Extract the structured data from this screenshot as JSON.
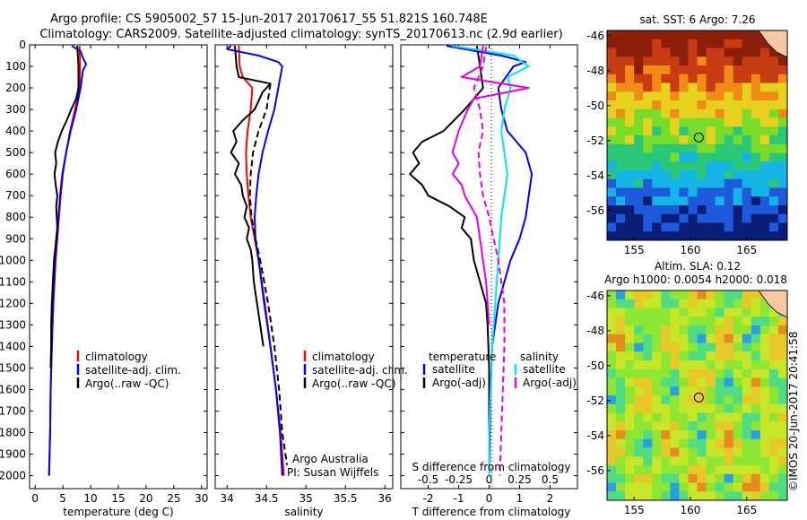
{
  "header": {
    "line1": "Argo profile: CS 5905002_57 15-Jun-2017 20170617_55 51.821S 160.748E",
    "line2": "Climatology: CARS2009. Satellite-adjusted climatology: synTS_20170613.nc (2.9d earlier)"
  },
  "colors": {
    "climatology": "#ff0000",
    "satellite": "#0000ff",
    "argo": "#000000",
    "salinity_satellite": "#00e5ff",
    "salinity_argo": "#e600e6"
  },
  "chart_data": [
    {
      "type": "line",
      "name": "temperature-profile",
      "xlabel": "temperature (deg C)",
      "ylabel": "",
      "xlim": [
        -1,
        31
      ],
      "ylim": [
        2060,
        0
      ],
      "xticks": [
        0,
        5,
        10,
        15,
        20,
        25,
        30
      ],
      "yticks": [
        0,
        100,
        200,
        300,
        400,
        500,
        600,
        700,
        800,
        900,
        1000,
        1100,
        1200,
        1300,
        1400,
        1500,
        1600,
        1700,
        1800,
        1900,
        2000
      ],
      "legend": {
        "position": "lower-center",
        "entries": [
          "climatology",
          "satellite-adj. clim.",
          "Argo(..raw -QC)"
        ]
      },
      "series": [
        {
          "name": "climatology",
          "color": "#ff0000",
          "style": "solid",
          "depth": [
            5,
            100,
            200,
            300,
            400,
            500,
            600,
            700,
            800,
            900,
            1000,
            1200,
            1400,
            1600,
            1800,
            2000
          ],
          "values": [
            8.0,
            8.1,
            8.0,
            7.2,
            6.3,
            5.6,
            5.0,
            4.6,
            4.3,
            4.0,
            3.7,
            3.3,
            3.0,
            2.8,
            2.7,
            2.5
          ]
        },
        {
          "name": "satellite-adj. clim.",
          "color": "#0000ff",
          "style": "solid",
          "depth": [
            5,
            30,
            60,
            90,
            120,
            200,
            300,
            400,
            500,
            600,
            700,
            800,
            900,
            1000,
            1200,
            1400,
            1600,
            1800,
            2000
          ],
          "values": [
            6.6,
            8.2,
            8.6,
            9.2,
            8.6,
            8.2,
            7.4,
            6.4,
            5.6,
            4.9,
            4.5,
            4.2,
            3.9,
            3.6,
            3.2,
            3.0,
            2.8,
            2.7,
            2.5
          ]
        },
        {
          "name": "Argo(..raw -QC)",
          "color": "#000000",
          "style": "solid",
          "depth": [
            5,
            100,
            200,
            250,
            300,
            350,
            400,
            450,
            500,
            550,
            600,
            650,
            700,
            750,
            800,
            850,
            900,
            950,
            1000,
            1050,
            1100,
            1150,
            1200,
            1300,
            1400,
            1500
          ],
          "values": [
            7.6,
            7.8,
            7.8,
            7.4,
            6.5,
            5.7,
            4.8,
            4.1,
            3.6,
            3.8,
            3.5,
            3.7,
            4.0,
            3.8,
            3.9,
            4.0,
            3.8,
            3.6,
            3.4,
            3.3,
            3.2,
            3.1,
            3.0,
            2.9,
            2.9,
            2.8
          ]
        }
      ]
    },
    {
      "type": "line",
      "name": "salinity-profile",
      "xlabel": "salinity",
      "xlim": [
        33.85,
        36.1
      ],
      "ylim": [
        2060,
        0
      ],
      "xticks": [
        34,
        34.5,
        35,
        35.5,
        36
      ],
      "legend": {
        "position": "lower-center",
        "entries": [
          "climatology",
          "satellite-adj. clim.",
          "Argo(..raw -QC)"
        ]
      },
      "annotations": [
        "Argo Australia",
        "PI: Susan Wijffels"
      ],
      "series": [
        {
          "name": "climatology",
          "color": "#ff0000",
          "style": "solid",
          "depth": [
            5,
            100,
            150,
            200,
            300,
            400,
            500,
            600,
            700,
            800,
            900,
            1000,
            1200,
            1400,
            1600,
            1800,
            2000
          ],
          "values": [
            34.15,
            34.16,
            34.2,
            34.32,
            34.3,
            34.26,
            34.24,
            34.25,
            34.27,
            34.3,
            34.35,
            34.4,
            34.48,
            34.55,
            34.62,
            34.68,
            34.72
          ]
        },
        {
          "name": "satellite-adj. clim.",
          "color": "#0000ff",
          "style": "solid",
          "depth": [
            5,
            20,
            50,
            80,
            100,
            200,
            300,
            400,
            500,
            600,
            700,
            800,
            900,
            1000,
            1200,
            1400,
            1600,
            1800,
            2000
          ],
          "values": [
            34.05,
            34.0,
            34.4,
            34.65,
            34.7,
            34.65,
            34.6,
            34.52,
            34.45,
            34.4,
            34.37,
            34.35,
            34.36,
            34.4,
            34.47,
            34.55,
            34.62,
            34.67,
            34.7
          ]
        },
        {
          "name": "Argo(..raw -QC)",
          "color": "#000000",
          "style": "solid",
          "depth": [
            5,
            100,
            150,
            180,
            220,
            300,
            350,
            400,
            450,
            500,
            550,
            600,
            650,
            700,
            750,
            800,
            850,
            900,
            950,
            1000,
            1050,
            1100,
            1200,
            1300,
            1400
          ],
          "values": [
            34.1,
            34.12,
            34.15,
            34.55,
            34.45,
            34.35,
            34.2,
            34.08,
            34.12,
            34.05,
            34.15,
            34.1,
            34.18,
            34.2,
            34.25,
            34.22,
            34.28,
            34.25,
            34.3,
            34.32,
            34.33,
            34.34,
            34.38,
            34.42,
            34.46
          ]
        },
        {
          "name": "Argo-dashed",
          "color": "#000000",
          "style": "dash",
          "depth": [
            180,
            300,
            400,
            500,
            600,
            700,
            800,
            900,
            1000,
            1200,
            1400,
            1600,
            1800,
            1950
          ],
          "values": [
            34.55,
            34.5,
            34.4,
            34.33,
            34.3,
            34.29,
            34.31,
            34.36,
            34.42,
            34.52,
            34.6,
            34.66,
            34.7,
            34.76
          ]
        }
      ]
    },
    {
      "type": "line",
      "name": "difference-profile",
      "xlabel": "T difference from climatology",
      "xlabel2": "S difference from climatology",
      "xlim": [
        -2.9,
        2.9
      ],
      "ylim": [
        2060,
        0
      ],
      "xticks": [
        -2,
        -1,
        0,
        1,
        2
      ],
      "xticks2_labels": [
        "-0.5",
        "-0.25",
        "0",
        "0.25",
        "0.5"
      ],
      "xticks2_pos": [
        -2,
        -1,
        0,
        1,
        2
      ],
      "legend": {
        "position": "lower-center",
        "temperature_title": "temperature",
        "salinity_title": "salinity",
        "entries": [
          "satellite",
          "Argo(-adj)",
          "satellite",
          "Argo(-adj)"
        ]
      },
      "series": [
        {
          "name": "T satellite",
          "color": "#0000ff",
          "style": "solid",
          "depth": [
            5,
            50,
            80,
            100,
            200,
            300,
            400,
            500,
            600,
            700,
            800,
            900,
            1000,
            1200,
            1400,
            1600,
            1800,
            2000
          ],
          "values": [
            -1.4,
            0.4,
            1.2,
            0.8,
            0.3,
            0.4,
            0.6,
            1.2,
            1.4,
            1.3,
            1.2,
            1.0,
            0.7,
            0.3,
            0.1,
            0.05,
            0.02,
            0.0
          ]
        },
        {
          "name": "T Argo(-adj)",
          "color": "#000000",
          "style": "solid",
          "depth": [
            5,
            100,
            200,
            250,
            300,
            400,
            450,
            500,
            550,
            600,
            650,
            700,
            750,
            800,
            850,
            900,
            1000,
            1100,
            1200,
            1300,
            1500,
            1800,
            2000
          ],
          "values": [
            -0.4,
            -0.3,
            -0.2,
            -0.5,
            -0.8,
            -1.5,
            -2.2,
            -2.5,
            -2.3,
            -2.6,
            -2.2,
            -2.0,
            -1.3,
            -0.8,
            -0.9,
            -0.6,
            -0.5,
            -0.3,
            -0.1,
            -0.05,
            0.0,
            0.0,
            0.0
          ]
        },
        {
          "name": "S satellite",
          "color": "#00e5ff",
          "style": "solid",
          "depth": [
            5,
            50,
            100,
            150,
            200,
            300,
            400,
            500,
            600,
            700,
            800,
            1000,
            1200,
            1400,
            1600,
            1800,
            2000
          ],
          "values": [
            -1.2,
            0.8,
            1.3,
            0.6,
            0.7,
            0.5,
            0.4,
            0.5,
            0.6,
            0.5,
            0.4,
            0.3,
            0.2,
            0.1,
            0.05,
            0.0,
            0.0
          ]
        },
        {
          "name": "S Argo(-adj)",
          "color": "#e600e6",
          "style": "solid",
          "depth": [
            5,
            100,
            150,
            200,
            250,
            300,
            400,
            500,
            550,
            600,
            650,
            700,
            800,
            900,
            1000,
            1100,
            1200,
            1300
          ],
          "values": [
            -0.2,
            -0.3,
            -0.9,
            1.3,
            -0.5,
            -0.7,
            -1.0,
            -1.2,
            -1.0,
            -1.2,
            -0.9,
            -0.8,
            -0.4,
            -0.3,
            -0.2,
            -0.1,
            -0.05,
            0.0
          ]
        },
        {
          "name": "S Argo dashed",
          "color": "#e600e6",
          "style": "dash",
          "depth": [
            10,
            100,
            200,
            300,
            400,
            500,
            600,
            700,
            800,
            1000,
            1200,
            1400,
            1600,
            1800,
            2000
          ],
          "values": [
            -0.1,
            -0.2,
            -0.5,
            -0.3,
            -0.2,
            -0.35,
            -0.3,
            -0.2,
            0.0,
            0.3,
            0.5,
            0.5,
            0.45,
            0.4,
            0.35
          ]
        }
      ]
    },
    {
      "type": "heatmap",
      "name": "sst-map",
      "title": "sat. SST: 6 Argo: 7.26",
      "xticks": [
        155,
        160,
        165
      ],
      "yticks": [
        -46,
        -48,
        -50,
        -52,
        -54,
        -56
      ],
      "xlim": [
        152.6,
        168.6
      ],
      "ylim": [
        -57.7,
        -45.7
      ],
      "marker": {
        "lon": 160.748,
        "lat": -51.821
      }
    },
    {
      "type": "heatmap",
      "name": "sla-map",
      "title": "Altim. SLA: 0.12",
      "subtitle": "Argo h1000: 0.0054 h2000: 0.018",
      "xticks": [
        155,
        160,
        165
      ],
      "yticks": [
        -46,
        -48,
        -50,
        -52,
        -54,
        -56
      ],
      "xlim": [
        152.6,
        168.6
      ],
      "ylim": [
        -57.7,
        -45.7
      ],
      "marker": {
        "lon": 160.748,
        "lat": -51.821
      }
    }
  ],
  "watermark": "©IMOS 20-Jun-2017 20:41:58"
}
